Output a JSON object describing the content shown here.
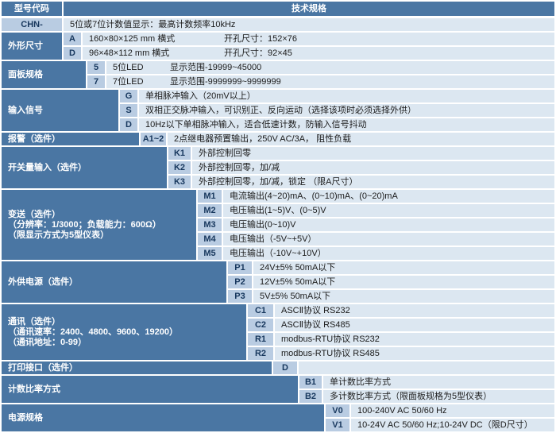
{
  "header": {
    "model_col": "型号代码",
    "spec_col": "技术规格"
  },
  "model": {
    "code": "CHN-",
    "desc": "5位或7位计数值显示：最高计数频率10kHz"
  },
  "sections": [
    {
      "label_lines": [
        "外形尺寸"
      ],
      "rows": [
        {
          "code": "A",
          "desc": "160×80×125 mm 横式",
          "desc2": "开孔尺寸：152×76"
        },
        {
          "code": "D",
          "desc": "96×48×112 mm 横式",
          "desc2": "开孔尺寸：92×45"
        }
      ]
    },
    {
      "label_lines": [
        "面板规格"
      ],
      "rows": [
        {
          "code": "5",
          "desc": "5位LED",
          "desc2": "显示范围-19999~45000"
        },
        {
          "code": "7",
          "desc": "7位LED",
          "desc2": "显示范围-9999999~9999999"
        }
      ]
    },
    {
      "label_lines": [
        "输入信号"
      ],
      "rows": [
        {
          "code": "G",
          "desc": "单相脉冲输入（20mV以上）"
        },
        {
          "code": "S",
          "desc": "双相正交脉冲输入，可识别正、反向运动（选择该项时必须选择外供）"
        },
        {
          "code": "D",
          "desc": "10Hz以下单相脉冲输入，适合低速计数，防输入信号抖动"
        }
      ]
    },
    {
      "label_lines": [
        "报警（选件）"
      ],
      "rows": [
        {
          "code": "A1~2",
          "desc": "2点继电器预置输出，250V AC/3A， 阻性负载"
        }
      ]
    },
    {
      "label_lines": [
        "开关量输入（选件）"
      ],
      "rows": [
        {
          "code": "K1",
          "desc": "外部控制回零"
        },
        {
          "code": "K2",
          "desc": "外部控制回零，加/减"
        },
        {
          "code": "K3",
          "desc": "外部控制回零，加/减，锁定 （限A尺寸）"
        }
      ]
    },
    {
      "label_lines": [
        "变送（选件）",
        "（分辨率：1/3000；负载能力：600Ω）",
        "（限显示方式为5型仪表）"
      ],
      "rows": [
        {
          "code": "M1",
          "desc": "电流输出(4~20)mA、(0~10)mA、(0~20)mA"
        },
        {
          "code": "M2",
          "desc": "电压输出(1~5)V、(0~5)V"
        },
        {
          "code": "M3",
          "desc": "电压输出(0~10)V"
        },
        {
          "code": "M4",
          "desc": "电压输出（-5V~+5V）"
        },
        {
          "code": "M5",
          "desc": "电压输出（-10V~+10V）"
        }
      ]
    },
    {
      "label_lines": [
        "外供电源（选件）"
      ],
      "rows": [
        {
          "code": "P1",
          "desc": "24V±5% 50mA以下"
        },
        {
          "code": "P2",
          "desc": "12V±5% 50mA以下"
        },
        {
          "code": "P3",
          "desc": "5V±5% 50mA以下"
        }
      ]
    },
    {
      "label_lines": [
        "通讯（选件）",
        "（通讯速率：2400、4800、9600、19200）",
        "（通讯地址：0-99）"
      ],
      "rows": [
        {
          "code": "C1",
          "desc": "ASCⅡ协议 RS232"
        },
        {
          "code": "C2",
          "desc": "ASCⅡ协议 RS485"
        },
        {
          "code": "R1",
          "desc": "modbus-RTU协议 RS232"
        },
        {
          "code": "R2",
          "desc": "modbus-RTU协议 RS485"
        }
      ]
    },
    {
      "label_lines": [
        "打印接口（选件）"
      ],
      "rows": [
        {
          "code": "D",
          "desc": ""
        }
      ]
    },
    {
      "label_lines": [
        "计数比率方式"
      ],
      "rows": [
        {
          "code": "B1",
          "desc": "单计数比率方式"
        },
        {
          "code": "B2",
          "desc": "多计数比率方式（限面板规格为5型仪表）"
        }
      ]
    },
    {
      "label_lines": [
        "电源规格"
      ],
      "rows": [
        {
          "code": "V0",
          "desc": "100-240V AC 50/60 Hz"
        },
        {
          "code": "V1",
          "desc": "10-24V AC 50/60 Hz;10-24V DC（限D尺寸）"
        }
      ]
    }
  ],
  "colors": {
    "dark_blue": "#4a76a3",
    "code_blue": "#b9cce2",
    "row_blue": "#dce7f1"
  }
}
